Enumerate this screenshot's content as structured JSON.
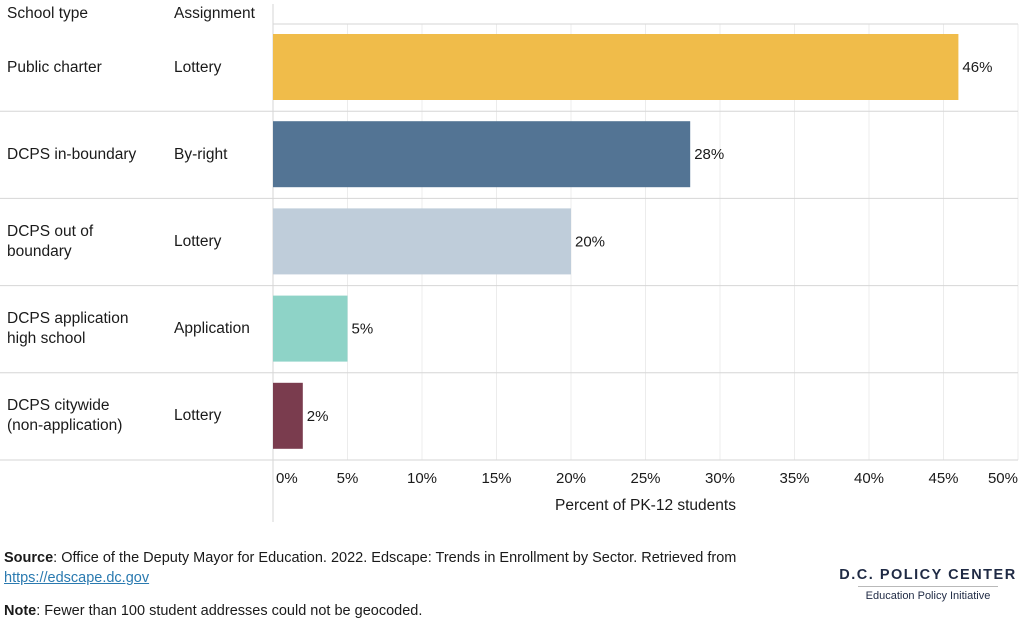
{
  "table_headers": {
    "school_type": "School type",
    "assignment": "Assignment"
  },
  "rows": [
    {
      "school_type": "Public charter",
      "assignment": "Lottery",
      "value": 46,
      "label": "46%",
      "color": "#f0bc4a"
    },
    {
      "school_type": "DCPS in-boundary",
      "assignment": "By-right",
      "value": 28,
      "label": "28%",
      "color": "#537494"
    },
    {
      "school_type": "DCPS out of boundary",
      "assignment": "Lottery",
      "value": 20,
      "label": "20%",
      "color": "#bfcdda"
    },
    {
      "school_type": "DCPS application high school",
      "assignment": "Application",
      "value": 5,
      "label": "5%",
      "color": "#8ed3c7"
    },
    {
      "school_type": "DCPS citywide (non-application)",
      "assignment": "Lottery",
      "value": 2,
      "label": "2%",
      "color": "#7a3c4e"
    }
  ],
  "chart_data": {
    "type": "bar",
    "orientation": "horizontal",
    "categories": [
      "Public charter",
      "DCPS in-boundary",
      "DCPS out of boundary",
      "DCPS application high school",
      "DCPS citywide (non-application)"
    ],
    "values": [
      46,
      28,
      20,
      5,
      2
    ],
    "data_labels": [
      "46%",
      "28%",
      "20%",
      "5%",
      "2%"
    ],
    "xlabel": "Percent of PK-12 students",
    "xlim": [
      0,
      50
    ],
    "xticks": [
      "0%",
      "5%",
      "10%",
      "15%",
      "20%",
      "25%",
      "30%",
      "35%",
      "40%",
      "45%",
      "50%"
    ],
    "grid": true
  },
  "footer": {
    "source_label": "Source",
    "source_text": ": Office of the Deputy Mayor for Education. 2022. Edscape: Trends in Enrollment by Sector. Retrieved from",
    "source_link": "https://edscape.dc.gov",
    "note_label": "Note",
    "note_text": ": Fewer than 100 student addresses could not be geocoded."
  },
  "logo": {
    "name": "D.C. POLICY CENTER",
    "subtitle": "Education Policy Initiative"
  }
}
